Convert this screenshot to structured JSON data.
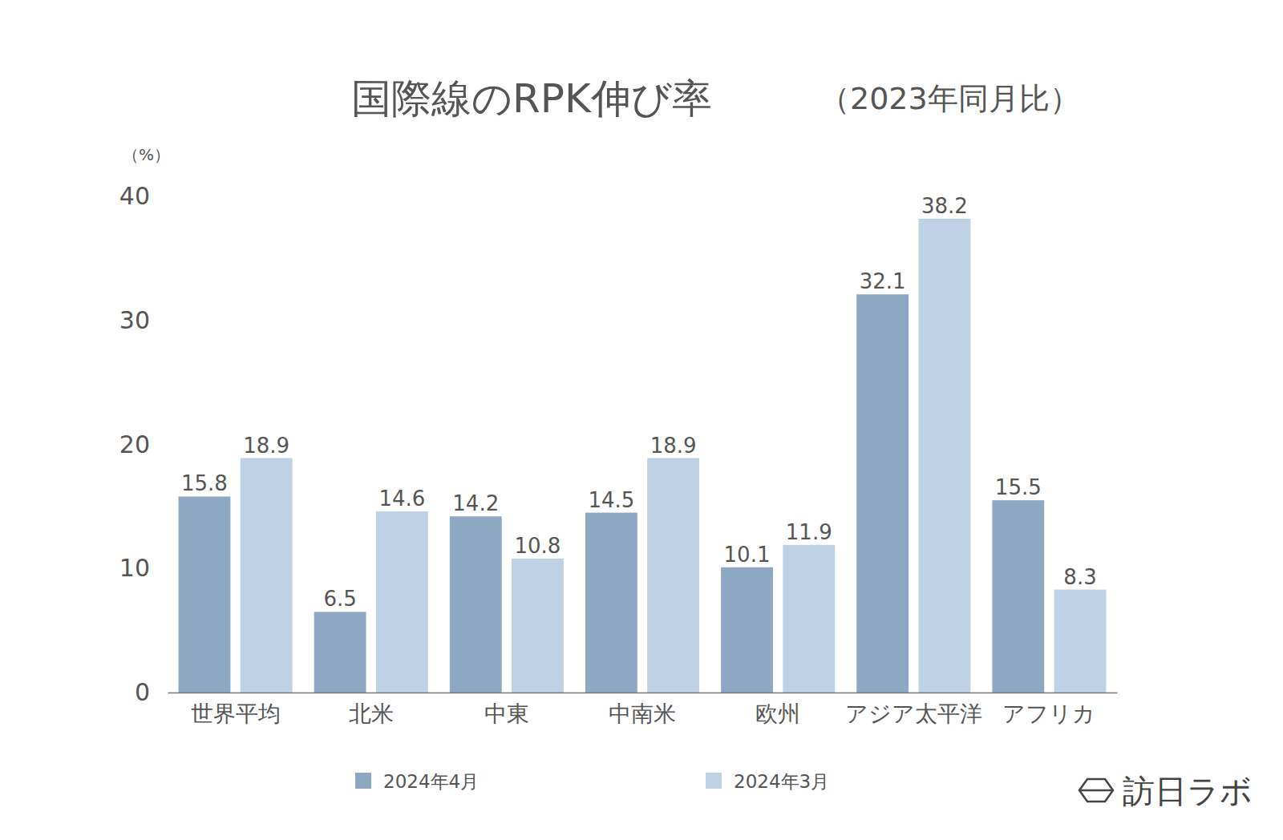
{
  "chart_data": {
    "type": "bar",
    "title": "国際線のRPK伸び率",
    "subtitle": "（2023年同月比）",
    "y_label": "（%）",
    "categories": [
      "世界平均",
      "北米",
      "中東",
      "中南米",
      "欧州",
      "アジア太平洋",
      "アフリカ"
    ],
    "series": [
      {
        "name": "2024年4月",
        "color": "#8ea8c3",
        "values": [
          15.8,
          6.5,
          14.2,
          14.5,
          10.1,
          32.1,
          15.5
        ]
      },
      {
        "name": "2024年3月",
        "color": "#bfd1e5",
        "values": [
          18.9,
          14.6,
          10.8,
          18.9,
          11.9,
          38.2,
          8.3
        ]
      }
    ],
    "ylim": [
      0,
      40
    ],
    "yticks": [
      0,
      10,
      20,
      30,
      40
    ],
    "grid": false,
    "data_labels": true,
    "legend": "bottom",
    "annotations": [
      "訪日ラボ"
    ]
  }
}
